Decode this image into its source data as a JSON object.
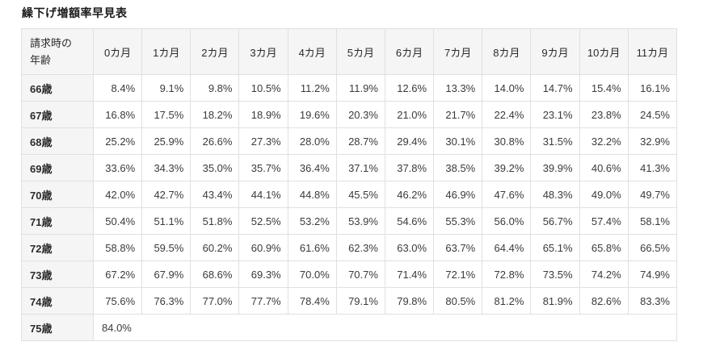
{
  "title": "繰下げ増額率早見表",
  "table": {
    "corner_header_lines": [
      "請求時の",
      "年齢"
    ],
    "month_headers": [
      "0カ月",
      "1カ月",
      "2カ月",
      "3カ月",
      "4カ月",
      "5カ月",
      "6カ月",
      "7カ月",
      "8カ月",
      "9カ月",
      "10カ月",
      "11カ月"
    ],
    "rows": [
      {
        "age": "66歳",
        "values": [
          "8.4%",
          "9.1%",
          "9.8%",
          "10.5%",
          "11.2%",
          "11.9%",
          "12.6%",
          "13.3%",
          "14.0%",
          "14.7%",
          "15.4%",
          "16.1%"
        ]
      },
      {
        "age": "67歳",
        "values": [
          "16.8%",
          "17.5%",
          "18.2%",
          "18.9%",
          "19.6%",
          "20.3%",
          "21.0%",
          "21.7%",
          "22.4%",
          "23.1%",
          "23.8%",
          "24.5%"
        ]
      },
      {
        "age": "68歳",
        "values": [
          "25.2%",
          "25.9%",
          "26.6%",
          "27.3%",
          "28.0%",
          "28.7%",
          "29.4%",
          "30.1%",
          "30.8%",
          "31.5%",
          "32.2%",
          "32.9%"
        ]
      },
      {
        "age": "69歳",
        "values": [
          "33.6%",
          "34.3%",
          "35.0%",
          "35.7%",
          "36.4%",
          "37.1%",
          "37.8%",
          "38.5%",
          "39.2%",
          "39.9%",
          "40.6%",
          "41.3%"
        ]
      },
      {
        "age": "70歳",
        "values": [
          "42.0%",
          "42.7%",
          "43.4%",
          "44.1%",
          "44.8%",
          "45.5%",
          "46.2%",
          "46.9%",
          "47.6%",
          "48.3%",
          "49.0%",
          "49.7%"
        ]
      },
      {
        "age": "71歳",
        "values": [
          "50.4%",
          "51.1%",
          "51.8%",
          "52.5%",
          "53.2%",
          "53.9%",
          "54.6%",
          "55.3%",
          "56.0%",
          "56.7%",
          "57.4%",
          "58.1%"
        ]
      },
      {
        "age": "72歳",
        "values": [
          "58.8%",
          "59.5%",
          "60.2%",
          "60.9%",
          "61.6%",
          "62.3%",
          "63.0%",
          "63.7%",
          "64.4%",
          "65.1%",
          "65.8%",
          "66.5%"
        ]
      },
      {
        "age": "73歳",
        "values": [
          "67.2%",
          "67.9%",
          "68.6%",
          "69.3%",
          "70.0%",
          "70.7%",
          "71.4%",
          "72.1%",
          "72.8%",
          "73.5%",
          "74.2%",
          "74.9%"
        ]
      },
      {
        "age": "74歳",
        "values": [
          "75.6%",
          "76.3%",
          "77.0%",
          "77.7%",
          "78.4%",
          "79.1%",
          "79.8%",
          "80.5%",
          "81.2%",
          "81.9%",
          "82.6%",
          "83.3%"
        ]
      },
      {
        "age": "75歳",
        "values": [
          "84.0%"
        ]
      }
    ]
  },
  "colors": {
    "header_bg": "#f5f5f5",
    "border": "#e0e0e0",
    "text": "#3a3a3a",
    "title_text": "#1a1a1a"
  }
}
